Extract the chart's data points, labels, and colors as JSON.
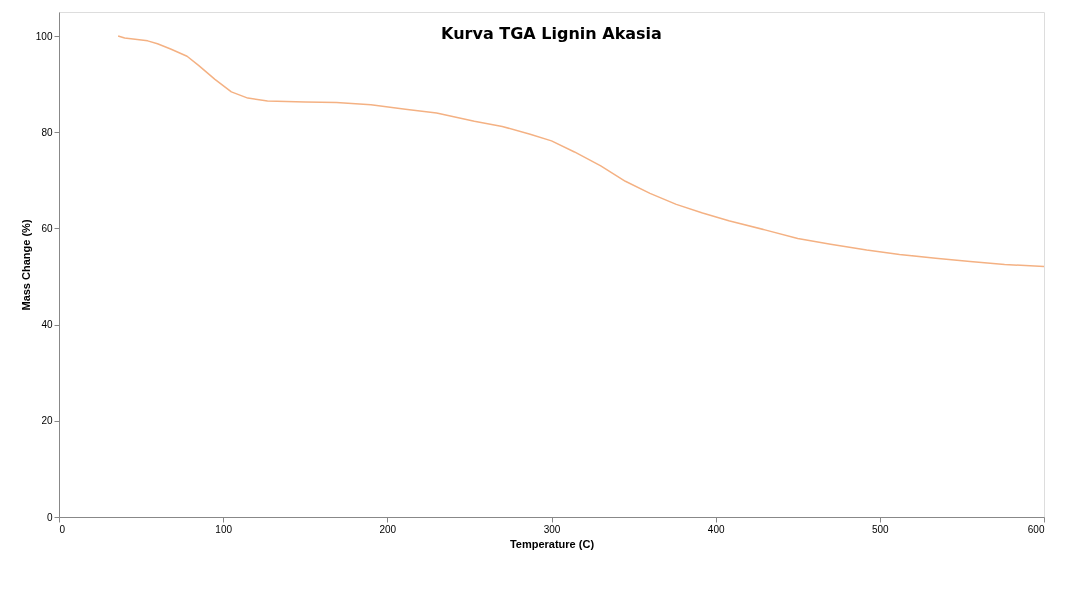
{
  "chart_data": {
    "type": "line",
    "title": "Kurva TGA Lignin Akasia",
    "xlabel": "Temperature (C)",
    "ylabel": "Mass Change (%)",
    "xlim": [
      0,
      600
    ],
    "xticks": [
      0,
      100,
      200,
      300,
      400,
      500,
      600
    ],
    "ylim": [
      0,
      105
    ],
    "yticks": [
      0,
      20,
      40,
      60,
      80,
      100
    ],
    "grid": false,
    "legend": false,
    "marker": "none",
    "line_style": "solid",
    "series": [
      {
        "color": "#f4b183",
        "x": [
          36,
          40,
          54,
          60,
          68,
          78,
          85,
          95,
          105,
          115,
          127,
          150,
          169,
          190,
          211,
          230,
          253,
          270,
          287,
          300,
          314,
          330,
          345,
          360,
          376,
          392,
          408,
          430,
          450,
          470,
          492,
          512,
          534,
          555,
          576,
          600
        ],
        "values": [
          100.0,
          99.6,
          99.0,
          98.4,
          97.3,
          95.8,
          93.9,
          91.0,
          88.4,
          87.1,
          86.5,
          86.3,
          86.2,
          85.7,
          84.8,
          84.0,
          82.3,
          81.2,
          79.6,
          78.2,
          75.9,
          73.0,
          69.8,
          67.3,
          65.0,
          63.2,
          61.6,
          59.7,
          57.9,
          56.7,
          55.5,
          54.6,
          53.8,
          53.1,
          52.5,
          52.1
        ]
      }
    ]
  }
}
